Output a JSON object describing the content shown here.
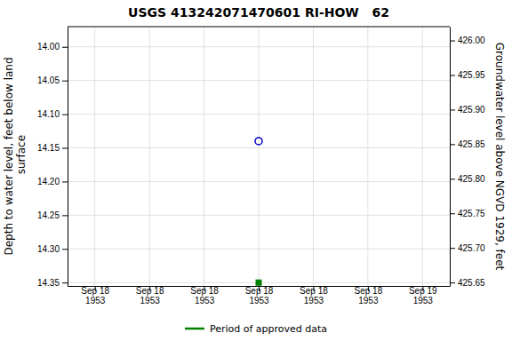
{
  "chart_data": {
    "type": "scatter",
    "title": "USGS 413242071470601 RI-HOW   62",
    "y_label": "Depth to water level, feet below land\n surface",
    "y2_label": "Groundwater level above NGVD 1929, feet",
    "categories": [
      "Sep 18\n1953",
      "Sep 18\n1953",
      "Sep 18\n1953",
      "Sep 18\n1953",
      "Sep 18\n1953",
      "Sep 18\n1953",
      "Sep 19\n1953"
    ],
    "series": [
      {
        "color": "#0000cd",
        "marker": "circle",
        "values": [
          null,
          null,
          null,
          14.14,
          null,
          null,
          null
        ]
      },
      {
        "name": "Period of approved data",
        "color": "#008000",
        "marker": "square",
        "values": [
          null,
          null,
          null,
          14.35,
          null,
          null,
          null
        ]
      }
    ],
    "ylim": [
      14.355,
      13.97
    ],
    "yticks": [
      {
        "value": 14.0,
        "label": "14.00"
      },
      14.05,
      {
        "value": 14.1,
        "label": "14.10"
      },
      14.15,
      {
        "value": 14.2,
        "label": "14.20"
      },
      14.25,
      {
        "value": 14.3,
        "label": "14.30"
      },
      14.35
    ],
    "y2lim": [
      425.645,
      426.02
    ],
    "y2ticks": [
      {
        "value": 426.0,
        "label": "426.00"
      },
      425.95,
      {
        "value": 425.9,
        "label": "425.90"
      },
      425.85,
      {
        "value": 425.8,
        "label": "425.80"
      },
      425.75,
      {
        "value": 425.7,
        "label": "425.70"
      },
      425.65
    ],
    "grid": true,
    "legend": "bottom"
  }
}
